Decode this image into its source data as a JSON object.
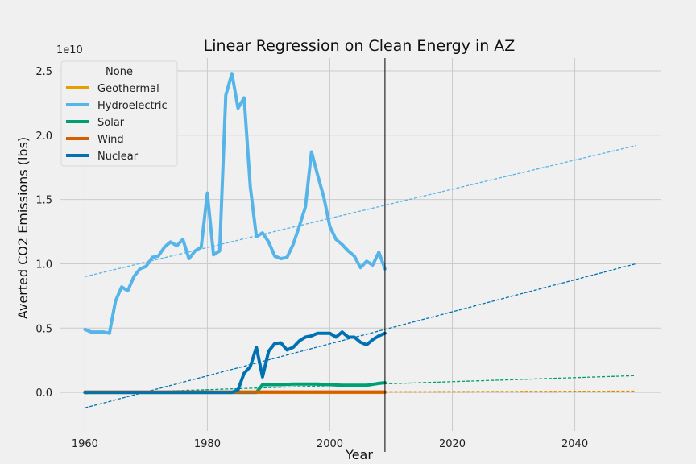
{
  "chart_data": {
    "type": "line",
    "title": "Linear Regression on Clean Energy in AZ",
    "xlabel": "Year",
    "ylabel": "Averted CO2 Emissions (lbs)",
    "y_scale_label": "1e10",
    "y_unit_multiplier": 10000000000,
    "xlim": [
      1956,
      2054
    ],
    "ylim": [
      -0.3,
      2.6
    ],
    "xticks": [
      1960,
      1980,
      2000,
      2020,
      2040
    ],
    "yticks": [
      0.0,
      0.5,
      1.0,
      1.5,
      2.0,
      2.5
    ],
    "xtick_labels": [
      "1960",
      "1980",
      "2000",
      "2020",
      "2040"
    ],
    "ytick_labels": [
      "0.0",
      "0.5",
      "1.0",
      "1.5",
      "2.0",
      "2.5"
    ],
    "grid": true,
    "legend_title": "None",
    "legend_position": "top-left",
    "vline_x": 2009,
    "series": [
      {
        "name": "Geothermal",
        "color": "#e69f00",
        "x": [
          1960,
          2009
        ],
        "y": [
          0,
          0
        ],
        "trend": {
          "x": [
            1960,
            2050
          ],
          "y": [
            0.0,
            0.01
          ]
        }
      },
      {
        "name": "Hydroelectric",
        "color": "#56b4e9",
        "x": [
          1960,
          1961,
          1962,
          1963,
          1964,
          1965,
          1966,
          1967,
          1968,
          1969,
          1970,
          1971,
          1972,
          1973,
          1974,
          1975,
          1976,
          1977,
          1978,
          1979,
          1980,
          1981,
          1982,
          1983,
          1984,
          1985,
          1986,
          1987,
          1988,
          1989,
          1990,
          1991,
          1992,
          1993,
          1994,
          1995,
          1996,
          1997,
          1998,
          1999,
          2000,
          2001,
          2002,
          2003,
          2004,
          2005,
          2006,
          2007,
          2008,
          2009
        ],
        "y": [
          0.49,
          0.47,
          0.47,
          0.47,
          0.46,
          0.71,
          0.82,
          0.79,
          0.9,
          0.96,
          0.98,
          1.05,
          1.06,
          1.13,
          1.17,
          1.14,
          1.19,
          1.04,
          1.1,
          1.13,
          1.55,
          1.07,
          1.1,
          2.31,
          2.48,
          2.21,
          2.29,
          1.6,
          1.21,
          1.24,
          1.17,
          1.06,
          1.04,
          1.05,
          1.15,
          1.29,
          1.44,
          1.87,
          1.69,
          1.52,
          1.29,
          1.19,
          1.15,
          1.1,
          1.06,
          0.97,
          1.02,
          0.99,
          1.09,
          0.96
        ],
        "trend": {
          "x": [
            1960,
            2050
          ],
          "y": [
            0.9,
            1.92
          ]
        }
      },
      {
        "name": "Solar",
        "color": "#009e73",
        "x": [
          1960,
          1988,
          1989,
          1990,
          1992,
          1994,
          1996,
          1998,
          2000,
          2002,
          2004,
          2006,
          2008,
          2009
        ],
        "y": [
          0,
          0,
          0.06,
          0.06,
          0.06,
          0.065,
          0.065,
          0.065,
          0.06,
          0.055,
          0.055,
          0.055,
          0.07,
          0.075
        ],
        "trend": {
          "x": [
            1960,
            2050
          ],
          "y": [
            -0.01,
            0.13
          ]
        }
      },
      {
        "name": "Wind",
        "color": "#d55e00",
        "x": [
          1960,
          2009
        ],
        "y": [
          0.003,
          0.003
        ],
        "trend": {
          "x": [
            1960,
            2050
          ],
          "y": [
            0.0,
            0.005
          ]
        }
      },
      {
        "name": "Nuclear",
        "color": "#0072b2",
        "x": [
          1960,
          1984,
          1985,
          1986,
          1987,
          1988,
          1989,
          1990,
          1991,
          1992,
          1993,
          1994,
          1995,
          1996,
          1997,
          1998,
          1999,
          2000,
          2001,
          2002,
          2003,
          2004,
          2005,
          2006,
          2007,
          2008,
          2009
        ],
        "y": [
          0,
          0,
          0.02,
          0.15,
          0.2,
          0.35,
          0.12,
          0.32,
          0.38,
          0.385,
          0.33,
          0.35,
          0.4,
          0.43,
          0.44,
          0.46,
          0.46,
          0.46,
          0.43,
          0.47,
          0.43,
          0.43,
          0.39,
          0.37,
          0.41,
          0.44,
          0.46
        ],
        "trend": {
          "x": [
            1960,
            2050
          ],
          "y": [
            -0.12,
            1.0
          ]
        }
      }
    ]
  }
}
